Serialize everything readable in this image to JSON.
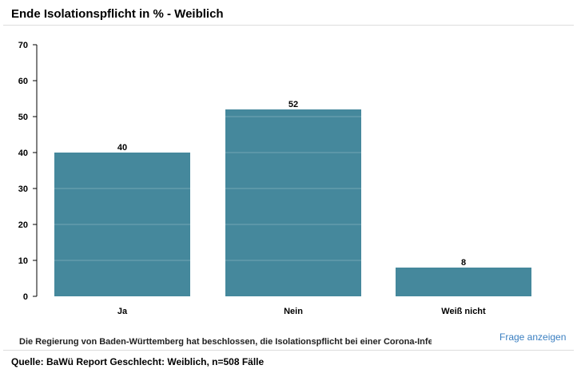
{
  "title": "Ende Isolationspflicht in % - Weiblich",
  "question": "Die Regierung von Baden-Württemberg hat beschlossen, die Isolationspflicht bei einer Corona-Infektion",
  "show_question_link": "Frage anzeigen",
  "source": "Quelle: BaWü Report Geschlecht: Weiblich, n=508 Fälle",
  "chart_data": {
    "type": "bar",
    "title": "Ende Isolationspflicht in % - Weiblich",
    "categories": [
      "Ja",
      "Nein",
      "Weiß nicht"
    ],
    "values": [
      40,
      52,
      8
    ],
    "ylim": [
      0,
      70
    ],
    "yticks": [
      0,
      10,
      20,
      30,
      40,
      50,
      60,
      70
    ],
    "grid": true,
    "bar_color": "#45889c"
  }
}
